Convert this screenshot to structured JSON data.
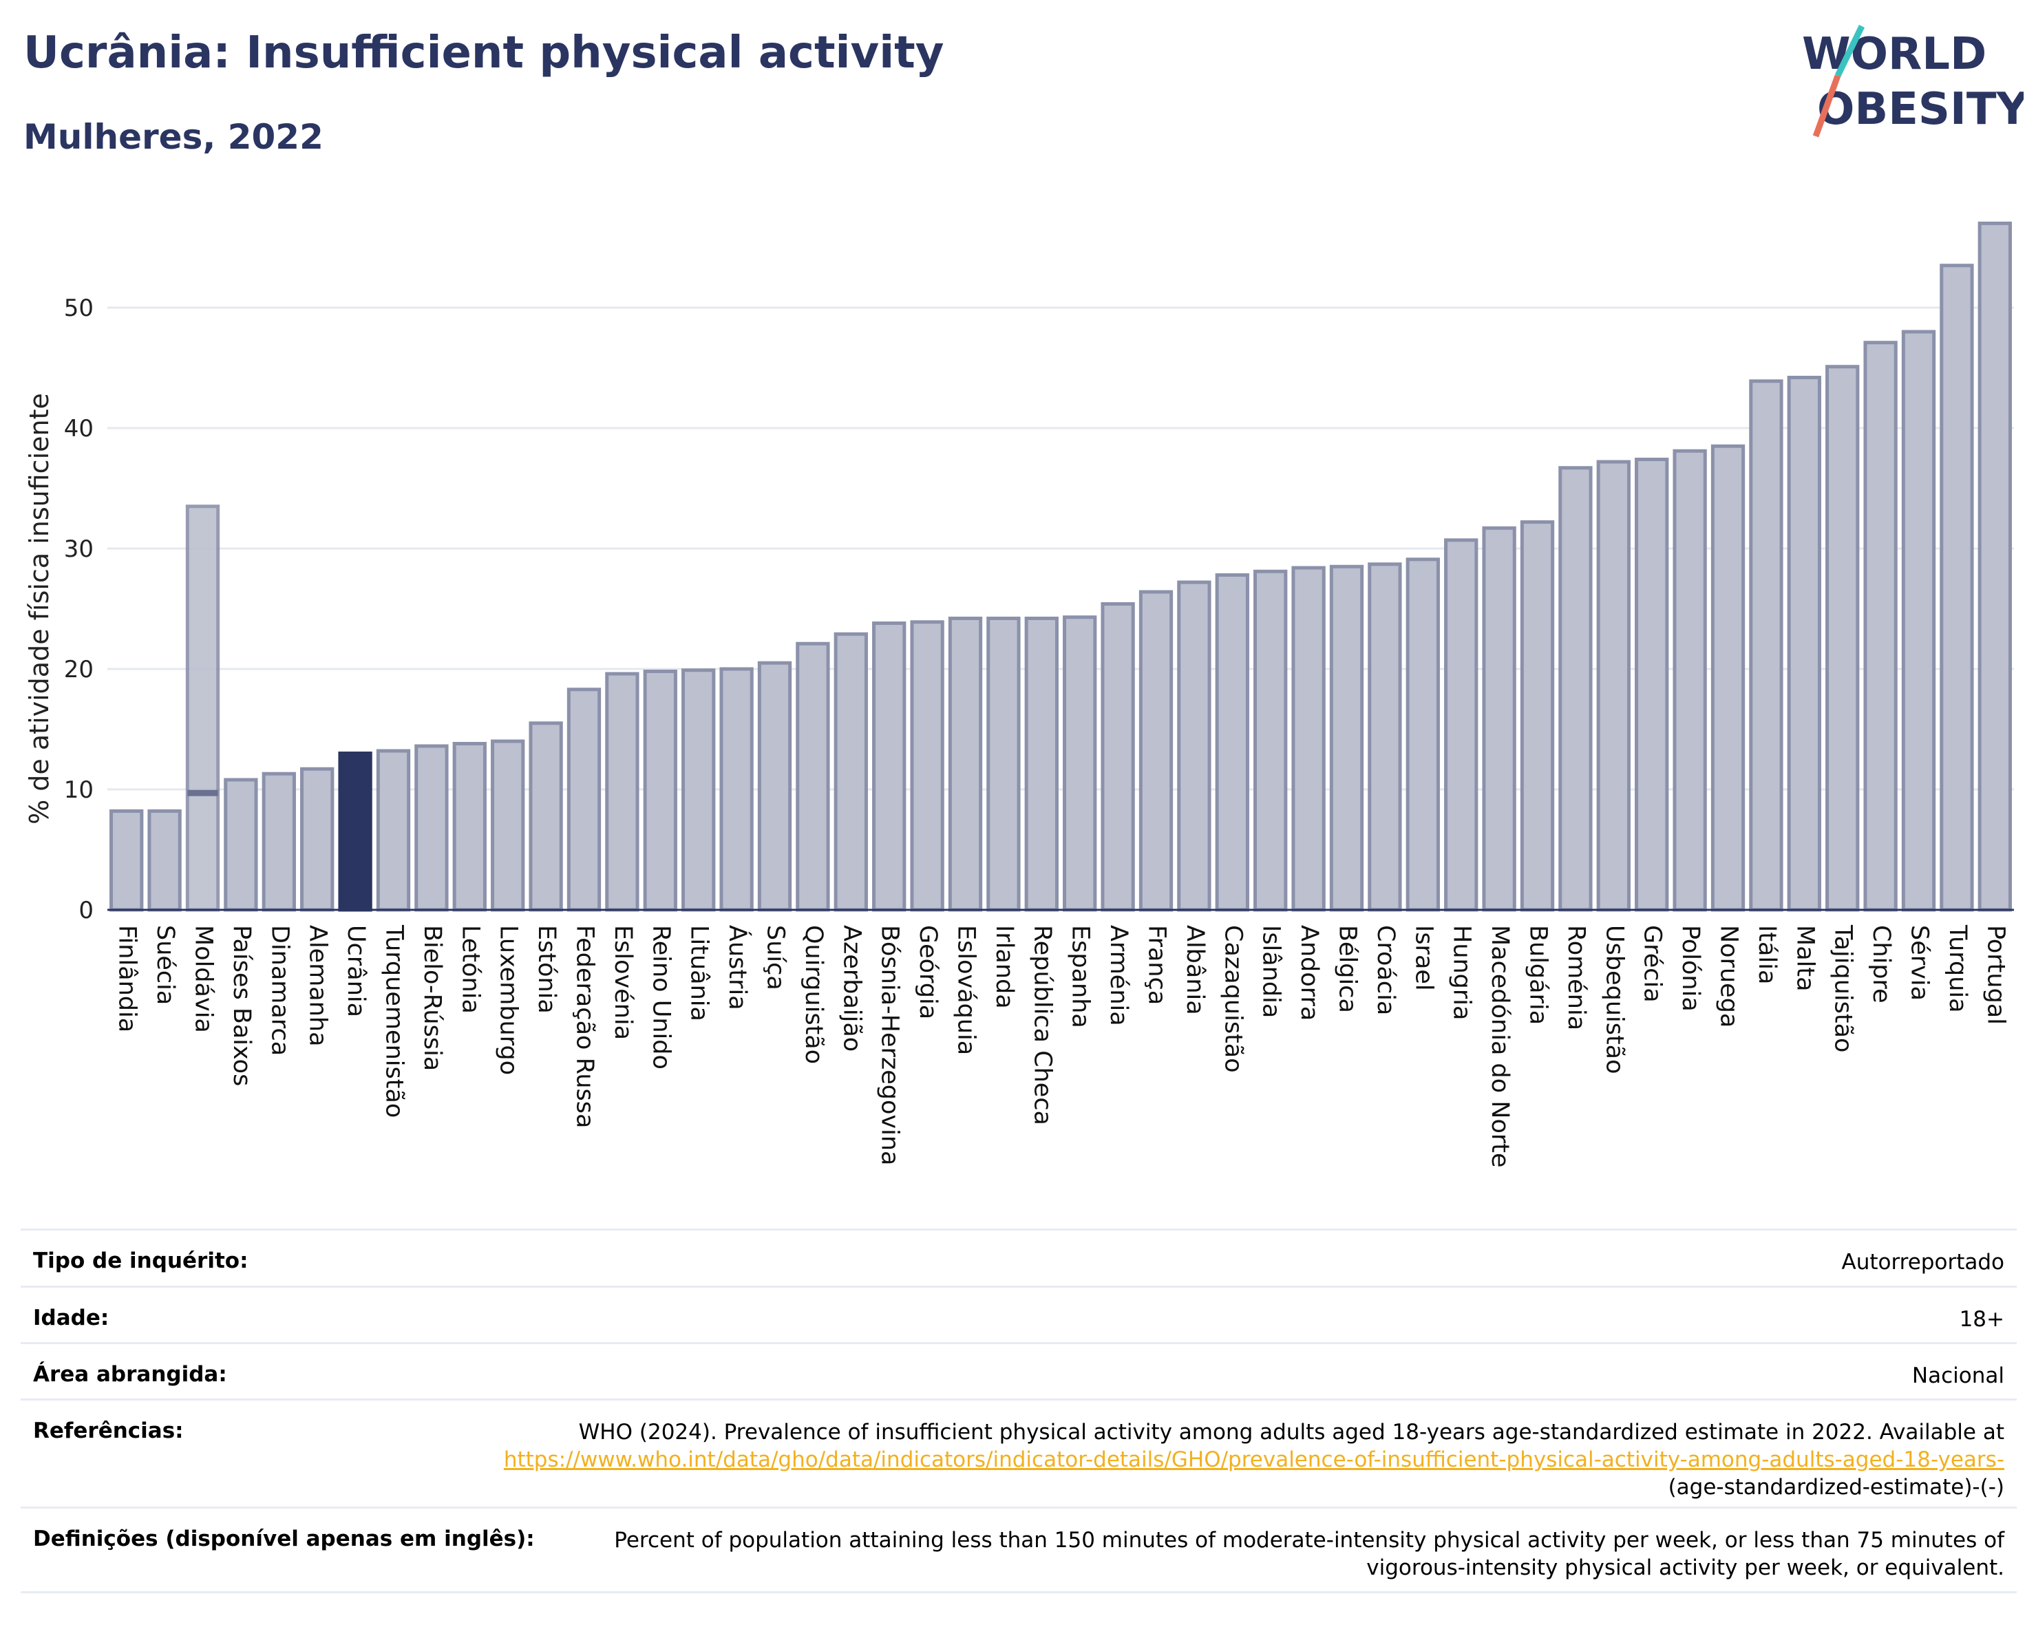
{
  "header": {
    "title": "Ucrânia: Insufficient physical activity",
    "subtitle": "Mulheres, 2022",
    "logo_line1": "WORLD",
    "logo_line2": "OBESITY"
  },
  "colors": {
    "highlight": "#2b3561",
    "bar_fill": "#bcc0cf",
    "bar_stroke": "#8b91aa",
    "title": "#2b3561",
    "logo_teal": "#3bc3c3",
    "logo_coral": "#e8705a",
    "link": "#f2b01e"
  },
  "chart_data": {
    "type": "bar",
    "ylabel": "% de atividade física insuficiente",
    "ylim": [
      0,
      58
    ],
    "yticks": [
      0,
      10,
      20,
      30,
      40,
      50
    ],
    "grid": true,
    "highlight": "Ucrânia",
    "categories": [
      "Finlândia",
      "Suécia",
      "Moldávia",
      "Países Baixos",
      "Dinamarca",
      "Alemanha",
      "Ucrânia",
      "Turquemenistão",
      "Bielo-Rússia",
      "Letónia",
      "Luxemburgo",
      "Estónia",
      "Federação Russa",
      "Eslovénia",
      "Reino Unido",
      "Lituânia",
      "Áustria",
      "Suíça",
      "Quirguistão",
      "Azerbaijão",
      "Bósnia-Herzegovina",
      "Geórgia",
      "Eslováquia",
      "Irlanda",
      "República Checa",
      "Espanha",
      "Arménia",
      "França",
      "Albânia",
      "Cazaquistão",
      "Islândia",
      "Andorra",
      "Bélgica",
      "Croácia",
      "Israel",
      "Hungria",
      "Macedónia do Norte",
      "Bulgária",
      "Roménia",
      "Usbequistão",
      "Grécia",
      "Polónia",
      "Noruega",
      "Itália",
      "Malta",
      "Tajiquistão",
      "Chipre",
      "Sérvia",
      "Turquia",
      "Portugal"
    ],
    "values": [
      8.2,
      8.2,
      9.7,
      10.8,
      11.3,
      11.7,
      13.0,
      13.2,
      13.6,
      13.8,
      14.0,
      15.5,
      18.3,
      19.6,
      19.8,
      19.9,
      20.0,
      20.5,
      22.1,
      22.9,
      23.8,
      23.9,
      24.2,
      24.2,
      24.2,
      24.3,
      25.4,
      26.4,
      27.2,
      27.8,
      28.1,
      28.4,
      28.5,
      28.7,
      29.1,
      30.7,
      31.7,
      32.2,
      36.7,
      37.2,
      37.4,
      38.1,
      38.5,
      43.9,
      44.2,
      45.1,
      47.1,
      48.0,
      53.5,
      57.0
    ],
    "second_values": {
      "Moldávia": 33.5
    }
  },
  "meta": [
    {
      "label": "Tipo de inquérito:",
      "value": "Autorreportado"
    },
    {
      "label": "Idade:",
      "value": "18+"
    },
    {
      "label": "Área abrangida:",
      "value": "Nacional"
    },
    {
      "label": "Referências:",
      "value_prefix": "WHO (2024). Prevalence of insufficient physical activity among adults aged 18-years age-standardized estimate in 2022. Available at",
      "link": "https://www.who.int/data/gho/data/indicators/indicator-details/GHO/prevalence-of-insufficient-physical-activity-among-adults-aged-18-years-",
      "value_suffix": "(age-standardized-estimate)-(-)"
    },
    {
      "label": "Definições (disponível apenas em inglês):",
      "value": "Percent of population attaining less than 150 minutes of moderate-intensity physical activity per week, or less than 75 minutes of vigorous-intensity physical activity per week, or equivalent."
    }
  ]
}
